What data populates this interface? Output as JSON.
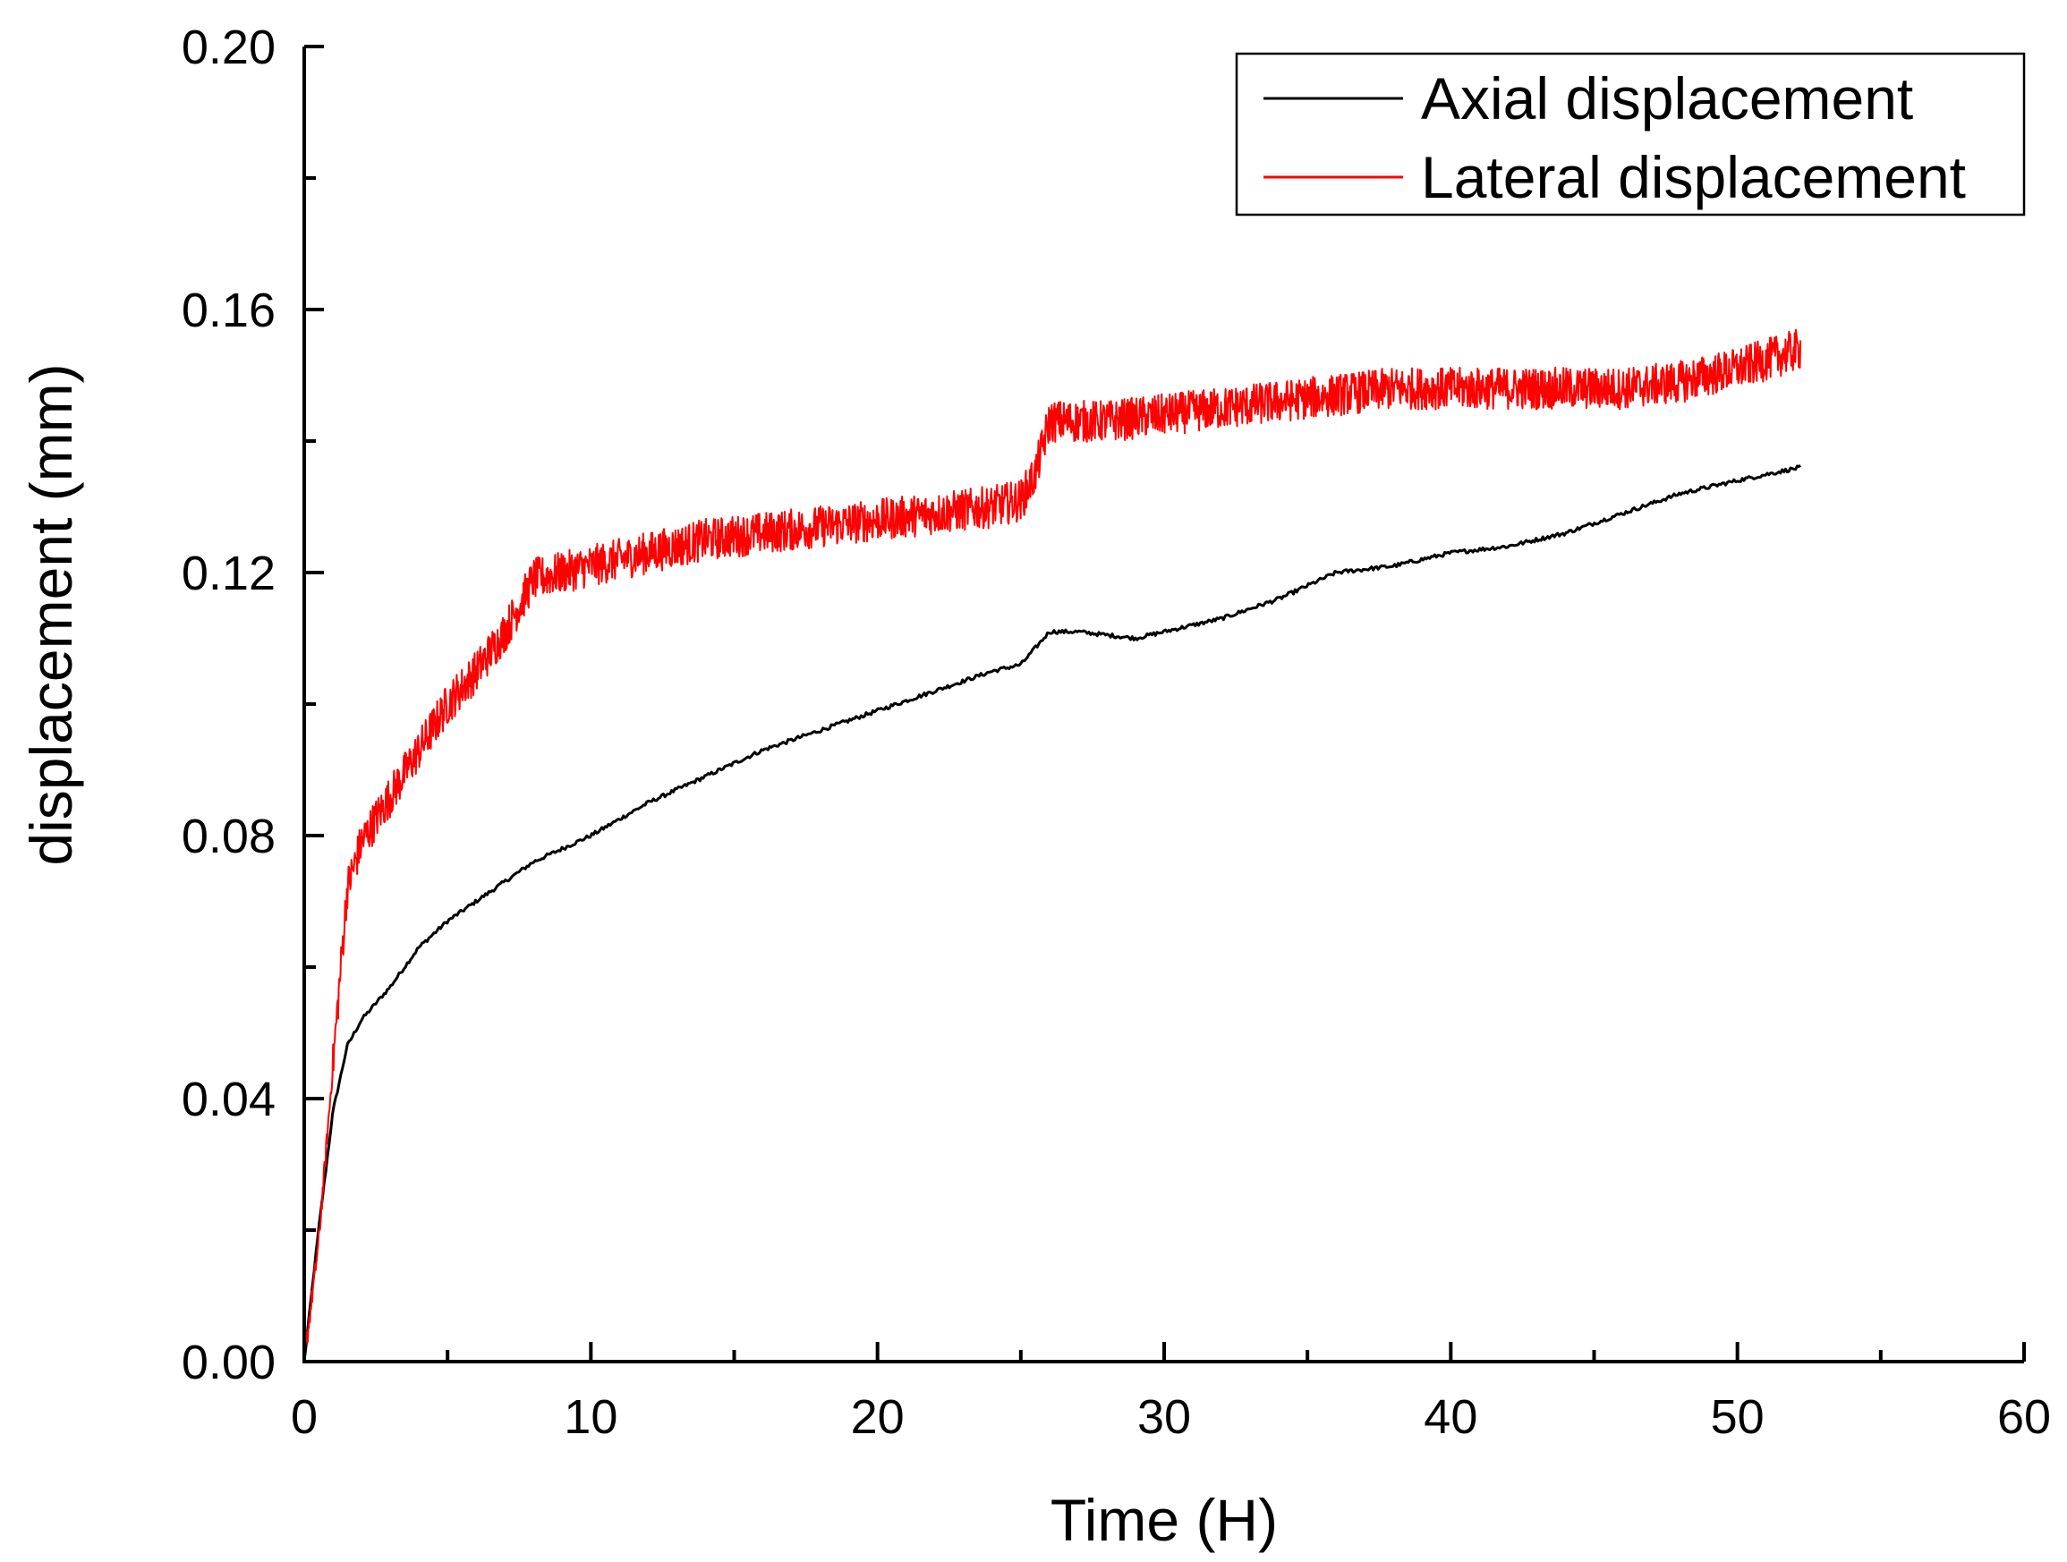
{
  "chart_data": {
    "type": "line",
    "title": "",
    "xlabel": "Time (H)",
    "ylabel": "displacement (mm)",
    "xlim": [
      0,
      60
    ],
    "ylim": [
      0,
      0.2
    ],
    "x_ticks": [
      0,
      10,
      20,
      30,
      40,
      50,
      60
    ],
    "x_tick_labels": [
      "0",
      "10",
      "20",
      "30",
      "40",
      "50",
      "60"
    ],
    "y_ticks": [
      0,
      0.04,
      0.08,
      0.12,
      0.16,
      0.2
    ],
    "y_tick_labels": [
      "0.00",
      "0.04",
      "0.08",
      "0.12",
      "0.16",
      "0.20"
    ],
    "grid": false,
    "legend_position": "top-right",
    "series": [
      {
        "name": "Axial displacement",
        "color": "#000000",
        "x": [
          0,
          0.5,
          1,
          1.5,
          2,
          3,
          4,
          5,
          6,
          7,
          8,
          9,
          10,
          12,
          14,
          16,
          18,
          20,
          22,
          24,
          25,
          26,
          27,
          29,
          30,
          32,
          34,
          36,
          38,
          40,
          42,
          44,
          46,
          48,
          50,
          52.2
        ],
        "y": [
          0,
          0.02,
          0.038,
          0.048,
          0.052,
          0.057,
          0.063,
          0.067,
          0.07,
          0.073,
          0.076,
          0.078,
          0.08,
          0.085,
          0.089,
          0.093,
          0.096,
          0.099,
          0.102,
          0.105,
          0.106,
          0.111,
          0.111,
          0.11,
          0.111,
          0.113,
          0.116,
          0.12,
          0.121,
          0.123,
          0.124,
          0.126,
          0.129,
          0.132,
          0.134,
          0.136
        ]
      },
      {
        "name": "Lateral displacement",
        "color": "#ff0000",
        "x": [
          0,
          0.5,
          1,
          1.5,
          2,
          3,
          4,
          5,
          6,
          7,
          8,
          9,
          10,
          12,
          14,
          16,
          18,
          20,
          22,
          24,
          25,
          25.5,
          26,
          28,
          30,
          32,
          34,
          36,
          38,
          40,
          42,
          44,
          46,
          48,
          50,
          52.2
        ],
        "y": [
          0,
          0.018,
          0.045,
          0.072,
          0.079,
          0.086,
          0.093,
          0.1,
          0.105,
          0.111,
          0.119,
          0.12,
          0.121,
          0.123,
          0.125,
          0.126,
          0.127,
          0.128,
          0.129,
          0.13,
          0.131,
          0.135,
          0.143,
          0.143,
          0.144,
          0.145,
          0.146,
          0.147,
          0.148,
          0.148,
          0.148,
          0.148,
          0.148,
          0.149,
          0.151,
          0.154
        ]
      }
    ]
  }
}
